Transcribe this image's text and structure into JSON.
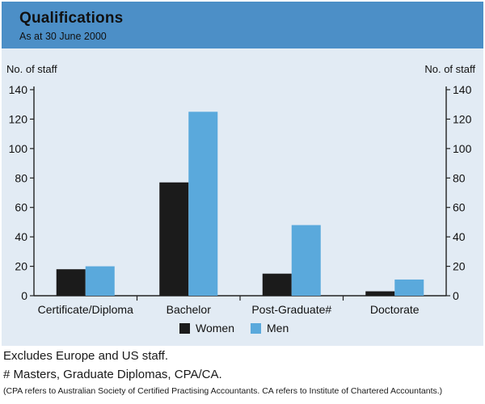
{
  "chart_data": {
    "type": "bar",
    "title": "Qualifications",
    "subtitle": "As at 30 June 2000",
    "ylabel_left": "No. of staff",
    "ylabel_right": "No. of staff",
    "categories": [
      "Certificate/Diploma",
      "Bachelor",
      "Post-Graduate#",
      "Doctorate"
    ],
    "series": [
      {
        "name": "Women",
        "color": "#1b1b1b",
        "values": [
          18,
          77,
          15,
          3
        ]
      },
      {
        "name": "Men",
        "color": "#5aa9dc",
        "values": [
          20,
          125,
          48,
          11
        ]
      }
    ],
    "ylim": [
      0,
      140
    ],
    "yticks": [
      0,
      20,
      40,
      60,
      80,
      100,
      120,
      140
    ],
    "legend_position": "bottom-center"
  },
  "notes": {
    "line1": "Excludes Europe and US staff.",
    "line2": "# Masters, Graduate Diplomas, CPA/CA.",
    "line3": "(CPA refers to Australian Society of Certified Practising Accountants. CA refers to Institute of Chartered Accountants.)"
  },
  "colors": {
    "panel": "#e2ebf4",
    "header": "#4c8fc7",
    "women": "#1b1b1b",
    "men": "#5aa9dc"
  }
}
